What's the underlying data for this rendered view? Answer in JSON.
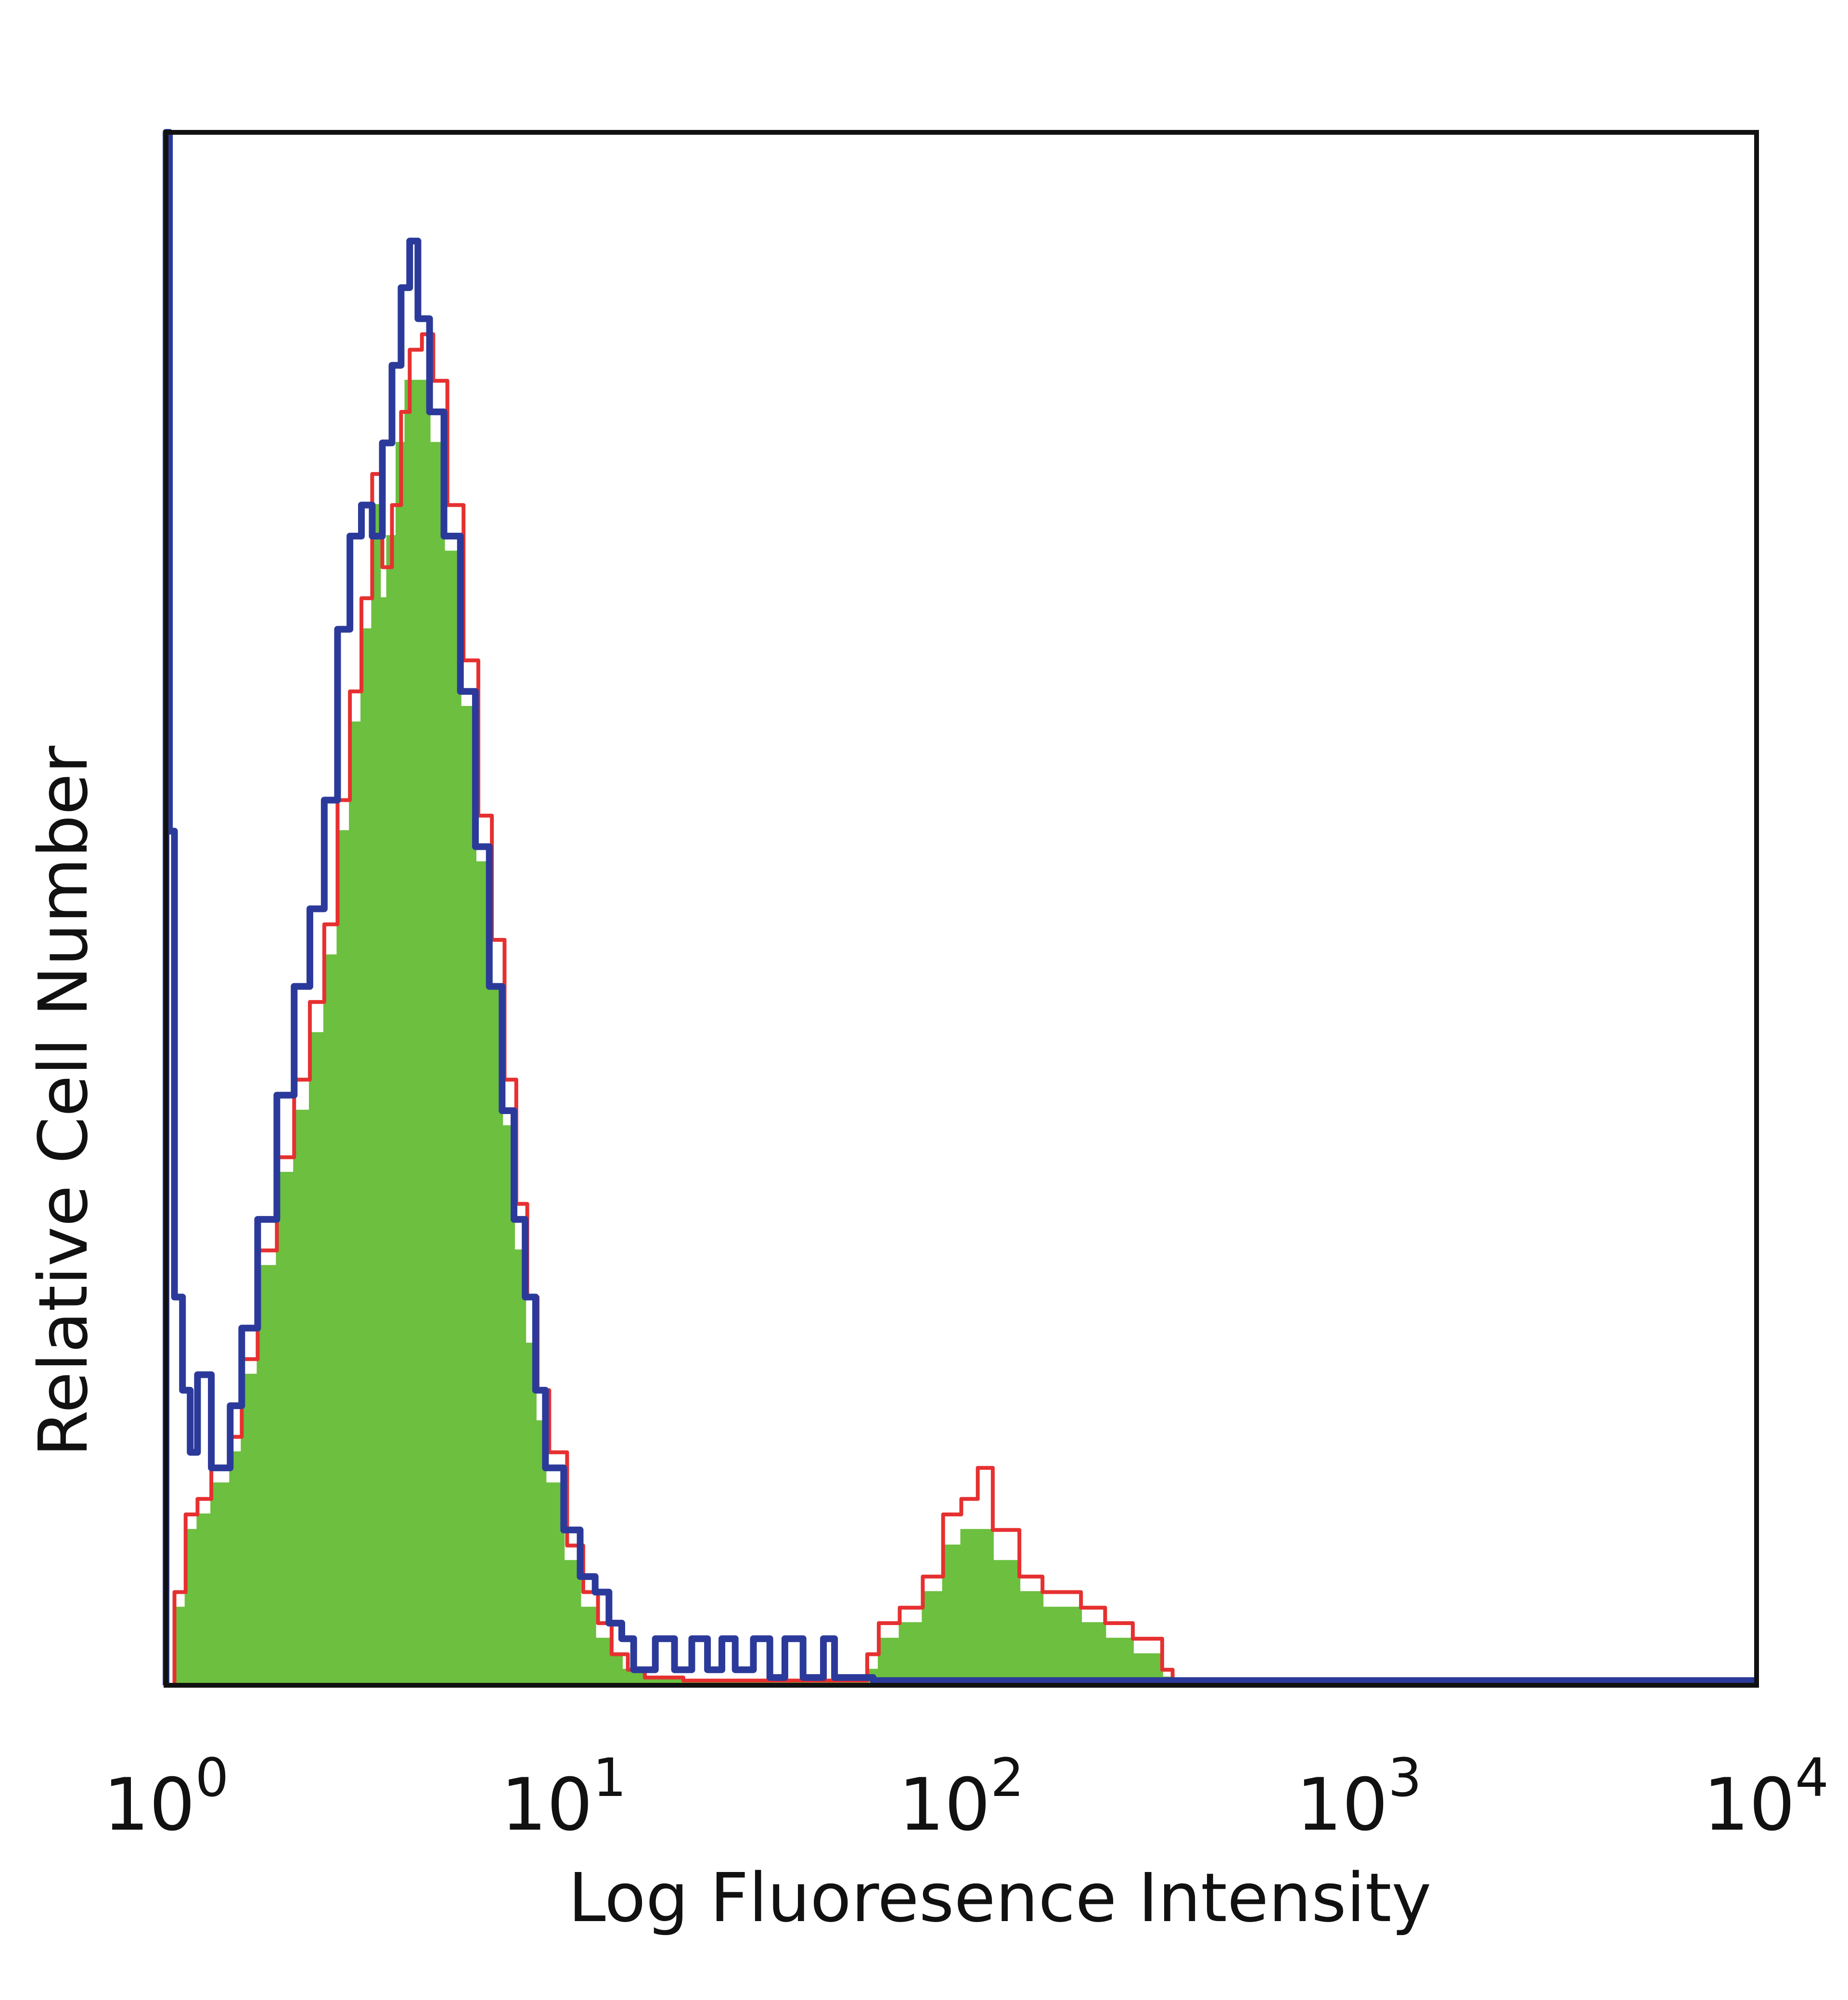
{
  "chart_data": {
    "type": "area",
    "title": "",
    "xlabel": "Log Fluoresence Intensity",
    "ylabel": "Relative Cell Number",
    "x_scale": "log",
    "xlim": [
      1,
      10000
    ],
    "ylim": [
      0,
      100
    ],
    "y_ticks_shown": false,
    "grid": false,
    "legend": "none",
    "x_ticks": [
      {
        "base": "10",
        "exp": "0"
      },
      {
        "base": "10",
        "exp": "1"
      },
      {
        "base": "10",
        "exp": "2"
      },
      {
        "base": "10",
        "exp": "3"
      },
      {
        "base": "10",
        "exp": "4"
      }
    ],
    "series": [
      {
        "color": "#6cbf3f",
        "style": "filled",
        "points": [
          [
            1.05,
            5
          ],
          [
            1.12,
            10
          ],
          [
            1.2,
            11
          ],
          [
            1.3,
            13
          ],
          [
            1.45,
            15
          ],
          [
            1.55,
            20
          ],
          [
            1.7,
            27
          ],
          [
            1.9,
            33
          ],
          [
            2.1,
            37
          ],
          [
            2.3,
            42
          ],
          [
            2.5,
            47
          ],
          [
            2.7,
            55
          ],
          [
            2.9,
            62
          ],
          [
            3.1,
            68
          ],
          [
            3.3,
            76
          ],
          [
            3.45,
            70
          ],
          [
            3.6,
            74
          ],
          [
            3.8,
            80
          ],
          [
            4.0,
            84
          ],
          [
            4.3,
            84
          ],
          [
            4.6,
            80
          ],
          [
            5.0,
            73
          ],
          [
            5.5,
            63
          ],
          [
            6.0,
            53
          ],
          [
            6.5,
            45
          ],
          [
            7.0,
            36
          ],
          [
            7.5,
            28
          ],
          [
            8.0,
            22
          ],
          [
            8.5,
            17
          ],
          [
            9.0,
            13
          ],
          [
            10.0,
            8
          ],
          [
            11.0,
            5
          ],
          [
            12.0,
            3
          ],
          [
            13.0,
            2
          ],
          [
            14.0,
            1
          ],
          [
            16.0,
            0.5
          ],
          [
            20.0,
            0.3
          ],
          [
            30.0,
            0.3
          ],
          [
            50.0,
            0.3
          ],
          [
            58.0,
            1
          ],
          [
            62.0,
            3
          ],
          [
            70.0,
            4
          ],
          [
            80.0,
            6
          ],
          [
            90.0,
            9
          ],
          [
            100.0,
            10
          ],
          [
            110.0,
            10
          ],
          [
            120.0,
            8
          ],
          [
            140.0,
            6
          ],
          [
            160.0,
            5
          ],
          [
            180.0,
            5
          ],
          [
            200.0,
            4
          ],
          [
            230.0,
            3
          ],
          [
            270.0,
            2
          ],
          [
            320.0,
            0.5
          ],
          [
            340.0,
            0
          ]
        ]
      },
      {
        "color": "#e63030",
        "style": "line",
        "points": [
          [
            1.05,
            6
          ],
          [
            1.12,
            11
          ],
          [
            1.2,
            12
          ],
          [
            1.3,
            14
          ],
          [
            1.45,
            16
          ],
          [
            1.55,
            21
          ],
          [
            1.7,
            28
          ],
          [
            1.9,
            34
          ],
          [
            2.1,
            39
          ],
          [
            2.3,
            44
          ],
          [
            2.5,
            49
          ],
          [
            2.7,
            57
          ],
          [
            2.9,
            64
          ],
          [
            3.1,
            70
          ],
          [
            3.3,
            78
          ],
          [
            3.5,
            72
          ],
          [
            3.7,
            76
          ],
          [
            3.9,
            82
          ],
          [
            4.1,
            86
          ],
          [
            4.4,
            87
          ],
          [
            4.7,
            84
          ],
          [
            5.1,
            76
          ],
          [
            5.6,
            66
          ],
          [
            6.1,
            56
          ],
          [
            6.6,
            48
          ],
          [
            7.1,
            39
          ],
          [
            7.6,
            31
          ],
          [
            8.1,
            25
          ],
          [
            8.6,
            19
          ],
          [
            9.2,
            15
          ],
          [
            10.2,
            9
          ],
          [
            11.2,
            6
          ],
          [
            12.2,
            4
          ],
          [
            13.2,
            2
          ],
          [
            14.5,
            1
          ],
          [
            16.0,
            0.5
          ],
          [
            20.0,
            0.3
          ],
          [
            30.0,
            0.3
          ],
          [
            50.0,
            0.3
          ],
          [
            58.0,
            2
          ],
          [
            62.0,
            4
          ],
          [
            70.0,
            5
          ],
          [
            80.0,
            7
          ],
          [
            90.0,
            11
          ],
          [
            100.0,
            12
          ],
          [
            110.0,
            14
          ],
          [
            120.0,
            10
          ],
          [
            140.0,
            7
          ],
          [
            160.0,
            6
          ],
          [
            180.0,
            6
          ],
          [
            200.0,
            5
          ],
          [
            230.0,
            4
          ],
          [
            270.0,
            3
          ],
          [
            320.0,
            1
          ],
          [
            340.0,
            0
          ]
        ]
      },
      {
        "color": "#2b3a9a",
        "style": "line",
        "points": [
          [
            1.0,
            100
          ],
          [
            1.02,
            55
          ],
          [
            1.05,
            25
          ],
          [
            1.1,
            19
          ],
          [
            1.15,
            15
          ],
          [
            1.2,
            20
          ],
          [
            1.3,
            14
          ],
          [
            1.45,
            18
          ],
          [
            1.55,
            23
          ],
          [
            1.7,
            30
          ],
          [
            1.9,
            38
          ],
          [
            2.1,
            45
          ],
          [
            2.3,
            50
          ],
          [
            2.5,
            57
          ],
          [
            2.7,
            68
          ],
          [
            2.9,
            74
          ],
          [
            3.1,
            76
          ],
          [
            3.3,
            74
          ],
          [
            3.5,
            80
          ],
          [
            3.7,
            85
          ],
          [
            3.9,
            90
          ],
          [
            4.1,
            93
          ],
          [
            4.3,
            88
          ],
          [
            4.6,
            82
          ],
          [
            5.0,
            74
          ],
          [
            5.5,
            64
          ],
          [
            6.0,
            54
          ],
          [
            6.5,
            45
          ],
          [
            7.0,
            37
          ],
          [
            7.5,
            30
          ],
          [
            8.0,
            25
          ],
          [
            8.5,
            19
          ],
          [
            9.0,
            14
          ],
          [
            10.0,
            10
          ],
          [
            11.0,
            7
          ],
          [
            12.0,
            6
          ],
          [
            13.0,
            4
          ],
          [
            14.0,
            3
          ],
          [
            15.0,
            1
          ],
          [
            17.0,
            3
          ],
          [
            19.0,
            1
          ],
          [
            21.0,
            3
          ],
          [
            23.0,
            1
          ],
          [
            25.0,
            3
          ],
          [
            27.0,
            1
          ],
          [
            30.0,
            3
          ],
          [
            33.0,
            0.5
          ],
          [
            36.0,
            3
          ],
          [
            40.0,
            0.5
          ],
          [
            45.0,
            3
          ],
          [
            48.0,
            0.5
          ],
          [
            60.0,
            0.3
          ],
          [
            500.0,
            0.3
          ],
          [
            10000.0,
            0.3
          ]
        ]
      }
    ]
  }
}
